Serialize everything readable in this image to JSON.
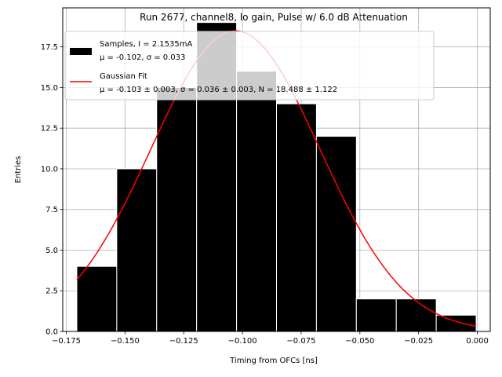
{
  "chart_data": {
    "type": "bar",
    "title": "Run 2677, channel8, lo gain, Pulse w/ 6.0 dB Attenuation",
    "xlabel": "Timing from OFCs [ns]",
    "ylabel": "Entries",
    "xlim": [
      -0.1765,
      0.0055
    ],
    "ylim": [
      0,
      19.9
    ],
    "grid": true,
    "legend_position": "upper-left",
    "x_ticks": [
      "−0.175",
      "−0.150",
      "−0.125",
      "−0.100",
      "−0.075",
      "−0.050",
      "−0.025",
      "0.000"
    ],
    "x_tick_values": [
      -0.175,
      -0.15,
      -0.125,
      -0.1,
      -0.075,
      -0.05,
      -0.025,
      0.0
    ],
    "y_ticks": [
      "0.0",
      "2.5",
      "5.0",
      "7.5",
      "10.0",
      "12.5",
      "15.0",
      "17.5"
    ],
    "y_tick_values": [
      0,
      2.5,
      5,
      7.5,
      10,
      12.5,
      15,
      17.5
    ],
    "histogram": {
      "name": "Samples, I = 2.1535mA",
      "legend_line2": "μ = -0.102, σ = 0.033",
      "color": "#000000",
      "edge_color": "#ffffff",
      "bin_edges": [
        -0.1705,
        -0.1535,
        -0.1365,
        -0.1195,
        -0.1025,
        -0.0855,
        -0.0685,
        -0.0515,
        -0.0345,
        -0.0175,
        -0.0005
      ],
      "counts": [
        4,
        10,
        15,
        19,
        16,
        14,
        12,
        2,
        2,
        1
      ]
    },
    "fit": {
      "name": "Gaussian Fit",
      "legend_line2": "μ = -0.103 ± 0.003, σ = 0.036 ± 0.003, N = 18.488 ± 1.122",
      "color": "#ff0000",
      "mu": -0.103,
      "sigma": 0.036,
      "N": 18.488,
      "x_range": [
        -0.1705,
        -0.0005
      ]
    }
  }
}
